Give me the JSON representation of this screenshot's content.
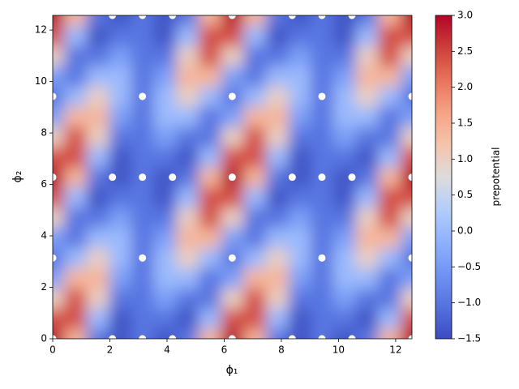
{
  "chart_data": {
    "type": "heatmap",
    "xlabel": "ϕ₁",
    "ylabel": "ϕ₂",
    "colorbar_label": "prepotential",
    "colormap": "coolwarm",
    "x": [
      0,
      0.79,
      1.57,
      2.36,
      3.14,
      3.93,
      4.71,
      5.5,
      6.28,
      7.07,
      7.85,
      8.64,
      9.42,
      10.21,
      10.99,
      11.78,
      12.57
    ],
    "y": [
      0,
      0.79,
      1.57,
      2.36,
      3.14,
      3.93,
      4.71,
      5.5,
      6.28,
      7.07,
      7.85,
      8.64,
      9.42,
      10.21,
      10.99,
      11.78,
      12.57
    ],
    "z": [
      [
        3,
        1.41,
        -1,
        -1.41,
        -1,
        -1.41,
        -1,
        1.41,
        3,
        1.41,
        -1,
        -1.41,
        -1,
        -1.41,
        -1,
        1.41,
        3
      ],
      [
        2.41,
        2.41,
        0,
        -1.41,
        -1,
        -1,
        -1.41,
        0,
        2.41,
        2.41,
        0,
        -1.41,
        -1,
        -1,
        -1.41,
        0,
        2.41
      ],
      [
        1,
        2.41,
        1,
        -1,
        -1,
        -0.41,
        -1,
        -1,
        1,
        2.41,
        1,
        -1,
        -1,
        -0.41,
        -1,
        -1,
        1
      ],
      [
        -0.41,
        1.41,
        1.41,
        -0.41,
        -1,
        0,
        0,
        -1,
        -0.41,
        1.41,
        1.41,
        -0.41,
        -1,
        0,
        0,
        -1,
        -0.41
      ],
      [
        -1,
        0,
        1,
        0,
        -1,
        0,
        1,
        0,
        -1,
        0,
        1,
        0,
        -1,
        0,
        1,
        0,
        -1
      ],
      [
        -0.41,
        -1,
        0,
        0,
        -1,
        -0.41,
        1.41,
        1.41,
        -0.41,
        -1,
        0,
        0,
        -1,
        -0.41,
        1.41,
        1.41,
        -0.41
      ],
      [
        1,
        -1,
        -1,
        -0.41,
        -1,
        -1,
        1,
        2.41,
        1,
        -1,
        -1,
        -0.41,
        -1,
        -1,
        1,
        2.41,
        1
      ],
      [
        2.41,
        0,
        -1.41,
        -1,
        -1,
        -1.41,
        0,
        2.41,
        2.41,
        0,
        -1.41,
        -1,
        -1,
        -1.41,
        0,
        2.41,
        2.41
      ],
      [
        3,
        1.41,
        -1,
        -1.41,
        -1,
        -1.41,
        -1,
        1.41,
        3,
        1.41,
        -1,
        -1.41,
        -1,
        -1.41,
        -1,
        1.41,
        3
      ],
      [
        2.41,
        2.41,
        0,
        -1.41,
        -1,
        -1,
        -1.41,
        0,
        2.41,
        2.41,
        0,
        -1.41,
        -1,
        -1,
        -1.41,
        0,
        2.41
      ],
      [
        1,
        2.41,
        1,
        -1,
        -1,
        -0.41,
        -1,
        -1,
        1,
        2.41,
        1,
        -1,
        -1,
        -0.41,
        -1,
        -1,
        1
      ],
      [
        -0.41,
        1.41,
        1.41,
        -0.41,
        -1,
        0,
        0,
        -1,
        -0.41,
        1.41,
        1.41,
        -0.41,
        -1,
        0,
        0,
        -1,
        -0.41
      ],
      [
        -1,
        0,
        1,
        0,
        -1,
        0,
        1,
        0,
        -1,
        0,
        1,
        0,
        -1,
        0,
        1,
        0,
        -1
      ],
      [
        -0.41,
        -1,
        0,
        0,
        -1,
        -0.41,
        1.41,
        1.41,
        -0.41,
        -1,
        0,
        0,
        -1,
        -0.41,
        1.41,
        1.41,
        -0.41
      ],
      [
        1,
        -1,
        -1,
        -0.41,
        -1,
        -1,
        1,
        2.41,
        1,
        -1,
        -1,
        -0.41,
        -1,
        -1,
        1,
        2.41,
        1
      ],
      [
        2.41,
        0,
        -1.41,
        -1,
        -1,
        -1.41,
        0,
        2.41,
        2.41,
        0,
        -1.41,
        -1,
        -1,
        -1.41,
        0,
        2.41,
        2.41
      ],
      [
        3,
        1.41,
        -1,
        -1.41,
        -1,
        -1.41,
        -1,
        1.41,
        3,
        1.41,
        -1,
        -1.41,
        -1,
        -1.41,
        -1,
        1.41,
        3
      ]
    ],
    "points": {
      "color": "#ffffff",
      "x": [
        0,
        2.09,
        3.14,
        4.19,
        6.28,
        8.38,
        9.42,
        10.47,
        12.57,
        0,
        3.14,
        6.28,
        9.42,
        12.57,
        0,
        2.09,
        3.14,
        4.19,
        6.28,
        8.38,
        9.42,
        10.47,
        12.57,
        0,
        3.14,
        6.28,
        9.42,
        12.57,
        2.09,
        3.14,
        4.19,
        6.28,
        8.38,
        9.42,
        10.47
      ],
      "y": [
        0,
        0,
        0,
        0,
        0,
        0,
        0,
        0,
        0,
        3.14,
        3.14,
        3.14,
        3.14,
        3.14,
        6.28,
        6.28,
        6.28,
        6.28,
        6.28,
        6.28,
        6.28,
        6.28,
        6.28,
        9.42,
        9.42,
        9.42,
        9.42,
        9.42,
        12.57,
        12.57,
        12.57,
        12.57,
        12.57,
        12.57,
        12.57
      ]
    },
    "xlim": [
      0,
      12.57
    ],
    "ylim": [
      0,
      12.57
    ],
    "xticks": [
      0,
      2,
      4,
      6,
      8,
      10,
      12
    ],
    "yticks": [
      0,
      2,
      4,
      6,
      8,
      10,
      12
    ],
    "clim": [
      -1.5,
      3
    ],
    "cticks": [
      {
        "value": -1.5,
        "label": "−1.5"
      },
      {
        "value": -1,
        "label": "−1.0"
      },
      {
        "value": -0.5,
        "label": "−0.5"
      },
      {
        "value": 0,
        "label": "0.0"
      },
      0.5,
      {
        "value": 1,
        "label": "1.0"
      },
      1.5,
      {
        "value": 2,
        "label": "2.0"
      },
      2.5,
      {
        "value": 3,
        "label": "3.0"
      }
    ]
  }
}
